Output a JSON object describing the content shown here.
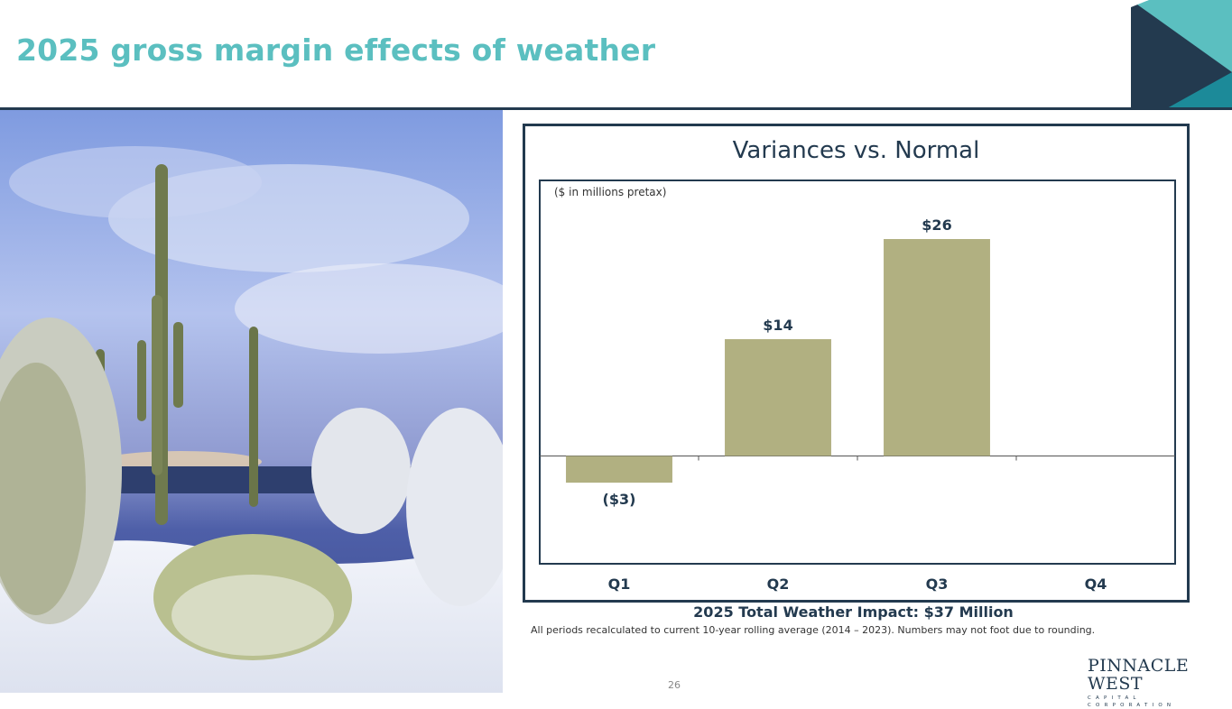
{
  "page": {
    "title": "2025 gross margin effects of weather",
    "page_number": "26"
  },
  "chart_data": {
    "type": "bar",
    "title": "Variances vs. Normal",
    "subtitle": "($ in millions pretax)",
    "categories": [
      "Q1",
      "Q2",
      "Q3",
      "Q4"
    ],
    "values": [
      -3.2,
      14,
      26,
      null
    ],
    "data_labels": [
      "($3)",
      "$14",
      "$26",
      ""
    ],
    "ylim": [
      -10,
      30
    ],
    "xlabel": "",
    "ylabel": "",
    "grid": false,
    "bar_color": "#b1b081"
  },
  "summary": {
    "total_label": "2025 Total Weather Impact: $37 Million",
    "footnote": "All periods recalculated to current 10-year rolling average (2014 – 2023). Numbers may not foot due to rounding."
  },
  "logo": {
    "name": "PINNACLE WEST",
    "sub": "CAPITAL CORPORATION"
  },
  "colors": {
    "navy": "#233a4f",
    "teal": "#5bbfc0",
    "dark_teal": "#1c8a99",
    "bar": "#b1b081"
  }
}
